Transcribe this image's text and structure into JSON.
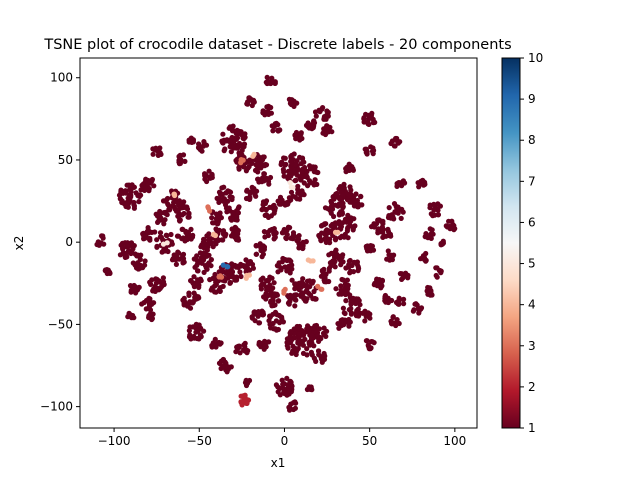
{
  "chart_data": {
    "type": "scatter",
    "title": "TSNE plot of crocodile dataset - Discrete labels - 20 components",
    "xlabel": "x1",
    "ylabel": "x2",
    "xlim": [
      -120,
      113
    ],
    "ylim": [
      -113,
      112
    ],
    "x_ticks": [
      -100,
      -50,
      0,
      50,
      100
    ],
    "y_ticks": [
      -100,
      -50,
      0,
      50,
      100
    ],
    "grid": false,
    "colormap": "RdBu",
    "colorbar": {
      "min": 1,
      "max": 10,
      "ticks": [
        1,
        2,
        3,
        4,
        5,
        6,
        7,
        8,
        9,
        10
      ]
    },
    "colors": {
      "low": "#67001f",
      "mid": "#f7f7f7",
      "high": "#053061"
    },
    "clusters": [
      {
        "x": -108,
        "y": 1,
        "r": 3,
        "n": 12,
        "label": 1
      },
      {
        "x": -104,
        "y": -18,
        "r": 2,
        "n": 8,
        "label": 1
      },
      {
        "x": -90,
        "y": 28,
        "r": 7,
        "n": 45,
        "label": 1
      },
      {
        "x": -80,
        "y": 35,
        "r": 4,
        "n": 18,
        "label": 1
      },
      {
        "x": -92,
        "y": -5,
        "r": 5,
        "n": 28,
        "label": 1
      },
      {
        "x": -85,
        "y": -12,
        "r": 4,
        "n": 20,
        "label": 1
      },
      {
        "x": -80,
        "y": 5,
        "r": 4,
        "n": 16,
        "label": 1
      },
      {
        "x": -75,
        "y": -25,
        "r": 5,
        "n": 22,
        "label": 1
      },
      {
        "x": -88,
        "y": -28,
        "r": 3,
        "n": 14,
        "label": 1
      },
      {
        "x": -80,
        "y": -38,
        "r": 4,
        "n": 16,
        "label": 1
      },
      {
        "x": -90,
        "y": -45,
        "r": 2,
        "n": 8,
        "label": 1
      },
      {
        "x": -78,
        "y": -45,
        "r": 2,
        "n": 8,
        "label": 1
      },
      {
        "x": -75,
        "y": 55,
        "r": 3,
        "n": 10,
        "label": 1
      },
      {
        "x": -70,
        "y": 0,
        "r": 6,
        "n": 30,
        "label": 1
      },
      {
        "x": -72,
        "y": 15,
        "r": 4,
        "n": 16,
        "label": 1
      },
      {
        "x": -65,
        "y": 25,
        "r": 6,
        "n": 30,
        "label": 1
      },
      {
        "x": -60,
        "y": 18,
        "r": 5,
        "n": 22,
        "label": 1
      },
      {
        "x": -58,
        "y": 5,
        "r": 5,
        "n": 22,
        "label": 1
      },
      {
        "x": -62,
        "y": -10,
        "r": 4,
        "n": 18,
        "label": 1
      },
      {
        "x": -55,
        "y": -35,
        "r": 5,
        "n": 24,
        "label": 1
      },
      {
        "x": -52,
        "y": -25,
        "r": 4,
        "n": 18,
        "label": 1
      },
      {
        "x": -48,
        "y": -12,
        "r": 6,
        "n": 30,
        "label": 1
      },
      {
        "x": -45,
        "y": 0,
        "r": 5,
        "n": 24,
        "label": 1
      },
      {
        "x": -45,
        "y": 40,
        "r": 3,
        "n": 12,
        "label": 1
      },
      {
        "x": -48,
        "y": 58,
        "r": 3,
        "n": 12,
        "label": 1
      },
      {
        "x": -55,
        "y": 62,
        "r": 2,
        "n": 8,
        "label": 1
      },
      {
        "x": -60,
        "y": 50,
        "r": 3,
        "n": 10,
        "label": 1
      },
      {
        "x": -52,
        "y": -55,
        "r": 5,
        "n": 22,
        "label": 1
      },
      {
        "x": -40,
        "y": -62,
        "r": 3,
        "n": 12,
        "label": 1
      },
      {
        "x": -35,
        "y": -75,
        "r": 4,
        "n": 16,
        "label": 1
      },
      {
        "x": -25,
        "y": -65,
        "r": 4,
        "n": 16,
        "label": 1
      },
      {
        "x": -30,
        "y": 62,
        "r": 8,
        "n": 55,
        "label": 1
      },
      {
        "x": -25,
        "y": 48,
        "r": 5,
        "n": 24,
        "label": 1
      },
      {
        "x": -35,
        "y": 28,
        "r": 5,
        "n": 24,
        "label": 1
      },
      {
        "x": -30,
        "y": 18,
        "r": 5,
        "n": 24,
        "label": 1
      },
      {
        "x": -40,
        "y": 15,
        "r": 4,
        "n": 16,
        "label": 1
      },
      {
        "x": -38,
        "y": 5,
        "r": 4,
        "n": 18,
        "label": 1
      },
      {
        "x": -28,
        "y": 5,
        "r": 4,
        "n": 18,
        "label": 1
      },
      {
        "x": -32,
        "y": -20,
        "r": 7,
        "n": 40,
        "label": 1
      },
      {
        "x": -40,
        "y": -25,
        "r": 5,
        "n": 26,
        "label": 1
      },
      {
        "x": -22,
        "y": -15,
        "r": 4,
        "n": 16,
        "label": 1
      },
      {
        "x": -20,
        "y": 30,
        "r": 4,
        "n": 16,
        "label": 1
      },
      {
        "x": -15,
        "y": 48,
        "r": 5,
        "n": 22,
        "label": 1
      },
      {
        "x": -12,
        "y": 38,
        "r": 4,
        "n": 16,
        "label": 1
      },
      {
        "x": -20,
        "y": 85,
        "r": 3,
        "n": 12,
        "label": 1
      },
      {
        "x": -8,
        "y": 98,
        "r": 3,
        "n": 12,
        "label": 1
      },
      {
        "x": -10,
        "y": 80,
        "r": 3,
        "n": 12,
        "label": 1
      },
      {
        "x": -5,
        "y": 70,
        "r": 3,
        "n": 10,
        "label": 1
      },
      {
        "x": -10,
        "y": 20,
        "r": 5,
        "n": 22,
        "label": 1
      },
      {
        "x": -8,
        "y": 5,
        "r": 4,
        "n": 16,
        "label": 1
      },
      {
        "x": -15,
        "y": -5,
        "r": 4,
        "n": 16,
        "label": 1
      },
      {
        "x": -10,
        "y": -25,
        "r": 5,
        "n": 22,
        "label": 1
      },
      {
        "x": -8,
        "y": -35,
        "r": 5,
        "n": 22,
        "label": 1
      },
      {
        "x": -15,
        "y": -45,
        "r": 4,
        "n": 16,
        "label": 1
      },
      {
        "x": -5,
        "y": -48,
        "r": 5,
        "n": 22,
        "label": 1
      },
      {
        "x": -12,
        "y": -62,
        "r": 3,
        "n": 12,
        "label": 1
      },
      {
        "x": -22,
        "y": -85,
        "r": 2,
        "n": 6,
        "label": 1
      },
      {
        "x": 0,
        "y": -88,
        "r": 5,
        "n": 26,
        "label": 1
      },
      {
        "x": 5,
        "y": -100,
        "r": 3,
        "n": 10,
        "label": 1
      },
      {
        "x": 5,
        "y": 45,
        "r": 8,
        "n": 60,
        "label": 1
      },
      {
        "x": 15,
        "y": 40,
        "r": 6,
        "n": 30,
        "label": 1
      },
      {
        "x": 8,
        "y": 30,
        "r": 4,
        "n": 16,
        "label": 1
      },
      {
        "x": 0,
        "y": 25,
        "r": 4,
        "n": 16,
        "label": 1
      },
      {
        "x": 5,
        "y": 85,
        "r": 3,
        "n": 10,
        "label": 1
      },
      {
        "x": 15,
        "y": 72,
        "r": 3,
        "n": 12,
        "label": 1
      },
      {
        "x": 8,
        "y": 65,
        "r": 3,
        "n": 12,
        "label": 1
      },
      {
        "x": 22,
        "y": 78,
        "r": 4,
        "n": 16,
        "label": 1
      },
      {
        "x": 25,
        "y": 68,
        "r": 3,
        "n": 12,
        "label": 1
      },
      {
        "x": 2,
        "y": 5,
        "r": 4,
        "n": 16,
        "label": 1
      },
      {
        "x": 10,
        "y": 0,
        "r": 4,
        "n": 16,
        "label": 1
      },
      {
        "x": 0,
        "y": -15,
        "r": 5,
        "n": 22,
        "label": 1
      },
      {
        "x": 8,
        "y": -25,
        "r": 4,
        "n": 16,
        "label": 1
      },
      {
        "x": 15,
        "y": -30,
        "r": 6,
        "n": 28,
        "label": 1
      },
      {
        "x": 5,
        "y": -35,
        "r": 4,
        "n": 16,
        "label": 1
      },
      {
        "x": 10,
        "y": -60,
        "r": 9,
        "n": 70,
        "label": 1
      },
      {
        "x": 20,
        "y": -55,
        "r": 5,
        "n": 24,
        "label": 1
      },
      {
        "x": 20,
        "y": -70,
        "r": 4,
        "n": 16,
        "label": 1
      },
      {
        "x": 15,
        "y": -90,
        "r": 2,
        "n": 6,
        "label": 1
      },
      {
        "x": 35,
        "y": -28,
        "r": 5,
        "n": 22,
        "label": 1
      },
      {
        "x": 40,
        "y": -40,
        "r": 6,
        "n": 28,
        "label": 1
      },
      {
        "x": 35,
        "y": -50,
        "r": 4,
        "n": 16,
        "label": 1
      },
      {
        "x": 25,
        "y": -20,
        "r": 4,
        "n": 16,
        "label": 1
      },
      {
        "x": 30,
        "y": -10,
        "r": 5,
        "n": 22,
        "label": 1
      },
      {
        "x": 40,
        "y": -15,
        "r": 4,
        "n": 16,
        "label": 1
      },
      {
        "x": 25,
        "y": 5,
        "r": 6,
        "n": 30,
        "label": 1
      },
      {
        "x": 35,
        "y": 10,
        "r": 7,
        "n": 38,
        "label": 1
      },
      {
        "x": 30,
        "y": 22,
        "r": 6,
        "n": 30,
        "label": 1
      },
      {
        "x": 35,
        "y": 30,
        "r": 5,
        "n": 24,
        "label": 1
      },
      {
        "x": 42,
        "y": 25,
        "r": 4,
        "n": 16,
        "label": 1
      },
      {
        "x": 38,
        "y": 45,
        "r": 3,
        "n": 12,
        "label": 1
      },
      {
        "x": 50,
        "y": 75,
        "r": 4,
        "n": 16,
        "label": 1
      },
      {
        "x": 50,
        "y": 55,
        "r": 3,
        "n": 10,
        "label": 1
      },
      {
        "x": 55,
        "y": 10,
        "r": 4,
        "n": 16,
        "label": 1
      },
      {
        "x": 50,
        "y": -5,
        "r": 3,
        "n": 12,
        "label": 1
      },
      {
        "x": 55,
        "y": -25,
        "r": 3,
        "n": 12,
        "label": 1
      },
      {
        "x": 60,
        "y": -35,
        "r": 3,
        "n": 10,
        "label": 1
      },
      {
        "x": 48,
        "y": -45,
        "r": 3,
        "n": 10,
        "label": 1
      },
      {
        "x": 50,
        "y": -62,
        "r": 3,
        "n": 12,
        "label": 1
      },
      {
        "x": 65,
        "y": 60,
        "r": 3,
        "n": 10,
        "label": 1
      },
      {
        "x": 68,
        "y": 35,
        "r": 3,
        "n": 12,
        "label": 1
      },
      {
        "x": 65,
        "y": 18,
        "r": 5,
        "n": 22,
        "label": 1
      },
      {
        "x": 60,
        "y": 5,
        "r": 3,
        "n": 10,
        "label": 1
      },
      {
        "x": 62,
        "y": -8,
        "r": 3,
        "n": 10,
        "label": 1
      },
      {
        "x": 70,
        "y": -20,
        "r": 3,
        "n": 10,
        "label": 1
      },
      {
        "x": 68,
        "y": -35,
        "r": 3,
        "n": 10,
        "label": 1
      },
      {
        "x": 65,
        "y": -48,
        "r": 3,
        "n": 10,
        "label": 1
      },
      {
        "x": 78,
        "y": -40,
        "r": 3,
        "n": 10,
        "label": 1
      },
      {
        "x": 80,
        "y": 35,
        "r": 3,
        "n": 12,
        "label": 1
      },
      {
        "x": 88,
        "y": 20,
        "r": 4,
        "n": 14,
        "label": 1
      },
      {
        "x": 85,
        "y": 5,
        "r": 3,
        "n": 10,
        "label": 1
      },
      {
        "x": 82,
        "y": -10,
        "r": 3,
        "n": 10,
        "label": 1
      },
      {
        "x": 90,
        "y": -18,
        "r": 3,
        "n": 8,
        "label": 1
      },
      {
        "x": 85,
        "y": -30,
        "r": 3,
        "n": 10,
        "label": 1
      },
      {
        "x": 98,
        "y": 10,
        "r": 3,
        "n": 10,
        "label": 1
      },
      {
        "x": 92,
        "y": 0,
        "r": 2,
        "n": 6,
        "label": 1
      },
      {
        "x": -24,
        "y": -96,
        "r": 3,
        "n": 14,
        "label": 2
      },
      {
        "x": -65,
        "y": 30,
        "r": 2,
        "n": 3,
        "label": 4
      },
      {
        "x": -45,
        "y": 20,
        "r": 2,
        "n": 3,
        "label": 3
      },
      {
        "x": -42,
        "y": 5,
        "r": 2,
        "n": 3,
        "label": 4
      },
      {
        "x": -35,
        "y": -15,
        "r": 2,
        "n": 3,
        "label": 9
      },
      {
        "x": -38,
        "y": -20,
        "r": 2,
        "n": 3,
        "label": 3
      },
      {
        "x": -25,
        "y": 50,
        "r": 2,
        "n": 3,
        "label": 3
      },
      {
        "x": -18,
        "y": 52,
        "r": 2,
        "n": 2,
        "label": 4
      },
      {
        "x": 5,
        "y": 35,
        "r": 2,
        "n": 3,
        "label": 5
      },
      {
        "x": 15,
        "y": -12,
        "r": 2,
        "n": 3,
        "label": 4
      },
      {
        "x": 20,
        "y": -28,
        "r": 2,
        "n": 3,
        "label": 3
      },
      {
        "x": 0,
        "y": -30,
        "r": 2,
        "n": 3,
        "label": 3
      },
      {
        "x": -70,
        "y": -2,
        "r": 2,
        "n": 2,
        "label": 5
      },
      {
        "x": -22,
        "y": -20,
        "r": 2,
        "n": 3,
        "label": 4
      },
      {
        "x": 30,
        "y": 5,
        "r": 2,
        "n": 2,
        "label": 4
      }
    ]
  }
}
